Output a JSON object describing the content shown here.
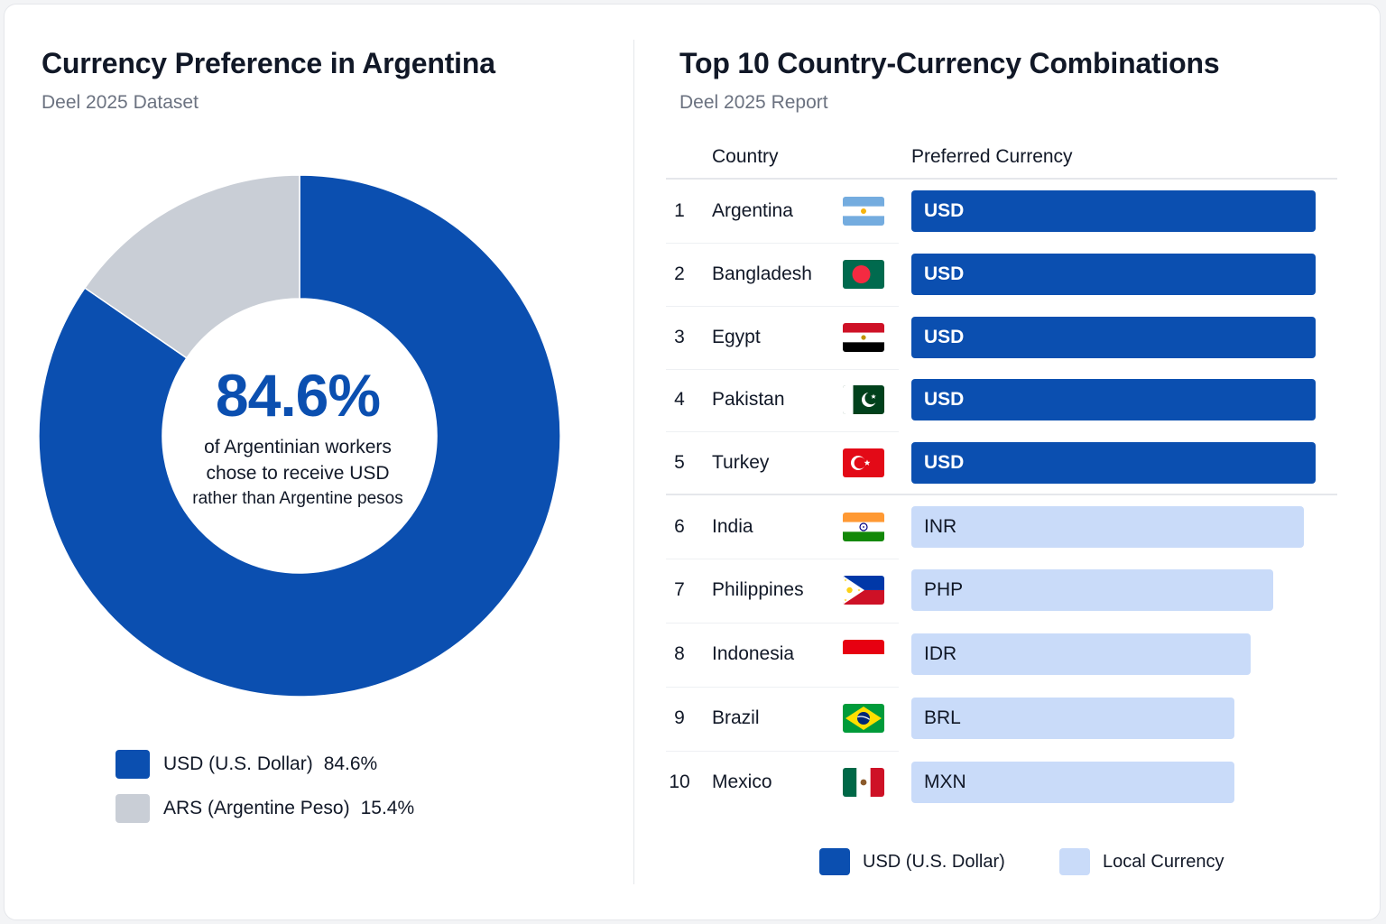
{
  "left": {
    "title": "Currency Preference in Argentina",
    "subtitle": "Deel 2025 Dataset",
    "center_value": "84.6%",
    "center_text": [
      "of Argentinian workers",
      "chose to receive USD",
      "rather than Argentine pesos"
    ],
    "legend": [
      {
        "label": "USD (U.S. Dollar)",
        "value": "84.6%",
        "color": "#0b4fb0"
      },
      {
        "label": "ARS (Argentine Peso)",
        "value": "15.4%",
        "color": "#c9ced6"
      }
    ]
  },
  "right": {
    "title": "Top 10 Country-Currency Combinations",
    "subtitle": "Deel 2025 Report",
    "col_country": "Country",
    "col_currency": "Preferred Currency",
    "legend": [
      {
        "label": "USD (U.S. Dollar)",
        "color": "#0b4fb0"
      },
      {
        "label": "Local Currency",
        "color": "#c9dbf9"
      }
    ]
  },
  "chart_data": [
    {
      "type": "pie",
      "title": "Currency Preference in Argentina",
      "subtitle": "Deel 2025 Dataset",
      "slices": [
        {
          "label": "USD (U.S. Dollar)",
          "value": 84.6,
          "color": "#0b4fb0"
        },
        {
          "label": "ARS (Argentine Peso)",
          "value": 15.4,
          "color": "#c9ced6"
        }
      ]
    },
    {
      "type": "table",
      "title": "Top 10 Country-Currency Combinations",
      "subtitle": "Deel 2025 Report",
      "columns": [
        "Country",
        "Preferred Currency"
      ],
      "rows": [
        {
          "rank": "1",
          "country": "Argentina",
          "flag": "argentina-flag-icon",
          "currency": "USD",
          "kind": "usd",
          "bar_fraction": 1.0
        },
        {
          "rank": "2",
          "country": "Bangladesh",
          "flag": "bangladesh-flag-icon",
          "currency": "USD",
          "kind": "usd",
          "bar_fraction": 1.0
        },
        {
          "rank": "3",
          "country": "Egypt",
          "flag": "egypt-flag-icon",
          "currency": "USD",
          "kind": "usd",
          "bar_fraction": 1.0
        },
        {
          "rank": "4",
          "country": "Pakistan",
          "flag": "pakistan-flag-icon",
          "currency": "USD",
          "kind": "usd",
          "bar_fraction": 1.0
        },
        {
          "rank": "5",
          "country": "Turkey",
          "flag": "turkey-flag-icon",
          "currency": "USD",
          "kind": "usd",
          "bar_fraction": 1.0
        },
        {
          "rank": "6",
          "country": "India",
          "flag": "india-flag-icon",
          "currency": "INR",
          "kind": "local",
          "bar_fraction": 0.97
        },
        {
          "rank": "7",
          "country": "Philippines",
          "flag": "philippines-flag-icon",
          "currency": "PHP",
          "kind": "local",
          "bar_fraction": 0.895
        },
        {
          "rank": "8",
          "country": "Indonesia",
          "flag": "indonesia-flag-icon",
          "currency": "IDR",
          "kind": "local",
          "bar_fraction": 0.84
        },
        {
          "rank": "9",
          "country": "Brazil",
          "flag": "brazil-flag-icon",
          "currency": "BRL",
          "kind": "local",
          "bar_fraction": 0.8
        },
        {
          "rank": "10",
          "country": "Mexico",
          "flag": "mexico-flag-icon",
          "currency": "MXN",
          "kind": "local",
          "bar_fraction": 0.8
        }
      ]
    }
  ]
}
